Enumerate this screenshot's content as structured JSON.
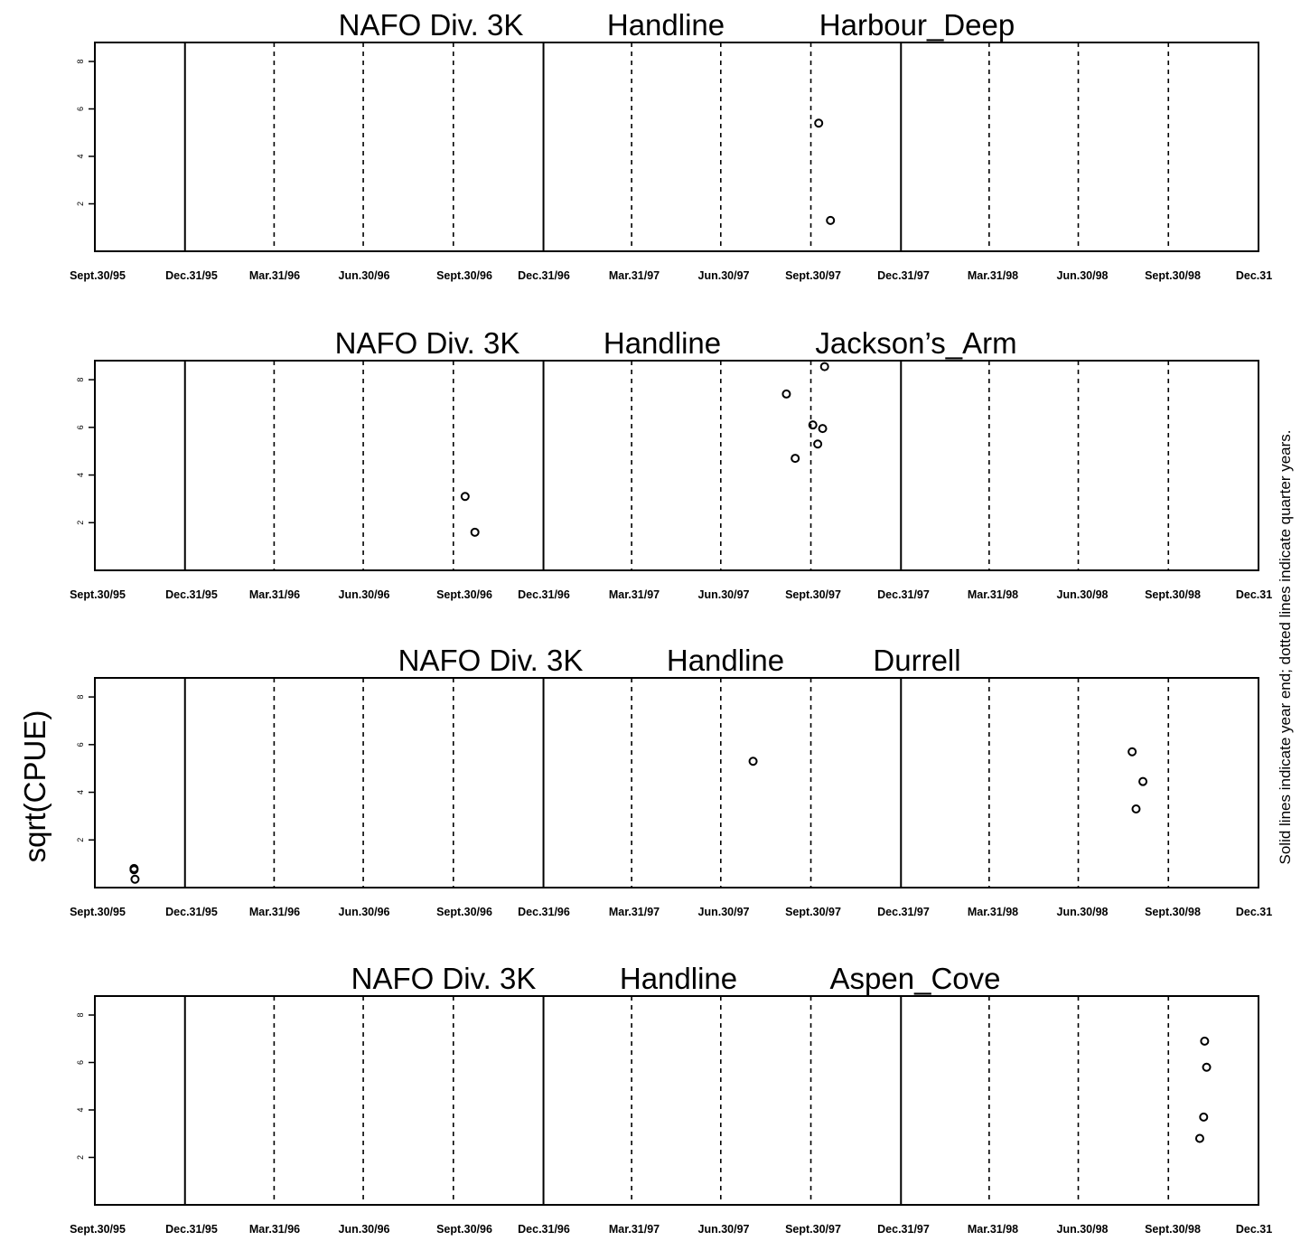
{
  "figure": {
    "ylabel": "sqrt(CPUE)",
    "side_note": "Solid lines indicate year end; dotted lines indicate quarter years."
  },
  "chart_data": [
    {
      "type": "scatter",
      "title_parts": [
        "NAFO Div. 3K",
        "Handline",
        "Harbour_Deep"
      ],
      "x_tick_labels": [
        "Sept.30/95",
        "Dec.31/95",
        "Mar.31/96",
        "Jun.30/96",
        "Sept.30/96",
        "Dec.31/96",
        "Mar.31/97",
        "Jun.30/97",
        "Sept.30/97",
        "Dec.31/97",
        "Mar.31/98",
        "Jun.30/98",
        "Sept.30/98",
        "Dec.31"
      ],
      "x_range": [
        "1995-09-30",
        "1998-12-31"
      ],
      "y_ticks": [
        2,
        4,
        6,
        8
      ],
      "ylim": [
        0,
        8.8
      ],
      "year_end_lines": [
        "1995-12-31",
        "1996-12-31",
        "1997-12-31"
      ],
      "quarter_lines": [
        "1996-03-31",
        "1996-06-30",
        "1996-09-30",
        "1997-03-31",
        "1997-06-30",
        "1997-09-30",
        "1998-03-31",
        "1998-06-30",
        "1998-09-30"
      ],
      "points": [
        {
          "x": "1997-10-08",
          "y": 5.4
        },
        {
          "x": "1997-10-20",
          "y": 1.3
        }
      ]
    },
    {
      "type": "scatter",
      "title_parts": [
        "NAFO Div. 3K",
        "Handline",
        "Jackson’s_Arm"
      ],
      "x_tick_labels": [
        "Sept.30/95",
        "Dec.31/95",
        "Mar.31/96",
        "Jun.30/96",
        "Sept.30/96",
        "Dec.31/96",
        "Mar.31/97",
        "Jun.30/97",
        "Sept.30/97",
        "Dec.31/97",
        "Mar.31/98",
        "Jun.30/98",
        "Sept.30/98",
        "Dec.31"
      ],
      "x_range": [
        "1995-09-30",
        "1998-12-31"
      ],
      "y_ticks": [
        2,
        4,
        6,
        8
      ],
      "ylim": [
        0,
        8.8
      ],
      "year_end_lines": [
        "1995-12-31",
        "1996-12-31",
        "1997-12-31"
      ],
      "quarter_lines": [
        "1996-03-31",
        "1996-06-30",
        "1996-09-30",
        "1997-03-31",
        "1997-06-30",
        "1997-09-30",
        "1998-03-31",
        "1998-06-30",
        "1998-09-30"
      ],
      "points": [
        {
          "x": "1996-10-12",
          "y": 3.1
        },
        {
          "x": "1996-10-22",
          "y": 1.6
        },
        {
          "x": "1997-09-05",
          "y": 7.4
        },
        {
          "x": "1997-09-14",
          "y": 4.7
        },
        {
          "x": "1997-10-02",
          "y": 6.1
        },
        {
          "x": "1997-10-07",
          "y": 5.3
        },
        {
          "x": "1997-10-12",
          "y": 5.95
        },
        {
          "x": "1997-10-14",
          "y": 8.55
        }
      ]
    },
    {
      "type": "scatter",
      "title_parts": [
        "NAFO Div. 3K",
        "Handline",
        "Durrell"
      ],
      "x_tick_labels": [
        "Sept.30/95",
        "Dec.31/95",
        "Mar.31/96",
        "Jun.30/96",
        "Sept.30/96",
        "Dec.31/96",
        "Mar.31/97",
        "Jun.30/97",
        "Sept.30/97",
        "Dec.31/97",
        "Mar.31/98",
        "Jun.30/98",
        "Sept.30/98",
        "Dec.31"
      ],
      "x_range": [
        "1995-09-30",
        "1998-12-31"
      ],
      "y_ticks": [
        2,
        4,
        6,
        8
      ],
      "ylim": [
        0,
        8.8
      ],
      "year_end_lines": [
        "1995-12-31",
        "1996-12-31",
        "1997-12-31"
      ],
      "quarter_lines": [
        "1996-03-31",
        "1996-06-30",
        "1996-09-30",
        "1997-03-31",
        "1997-06-30",
        "1997-09-30",
        "1998-03-31",
        "1998-06-30",
        "1998-09-30"
      ],
      "points": [
        {
          "x": "1995-11-09",
          "y": 0.75
        },
        {
          "x": "1995-11-09",
          "y": 0.8
        },
        {
          "x": "1995-11-10",
          "y": 0.35
        },
        {
          "x": "1997-08-02",
          "y": 5.3
        },
        {
          "x": "1998-08-24",
          "y": 5.7
        },
        {
          "x": "1998-08-28",
          "y": 3.3
        },
        {
          "x": "1998-09-04",
          "y": 4.45
        }
      ]
    },
    {
      "type": "scatter",
      "title_parts": [
        "NAFO Div. 3K",
        "Handline",
        "Aspen_Cove"
      ],
      "x_tick_labels": [
        "Sept.30/95",
        "Dec.31/95",
        "Mar.31/96",
        "Jun.30/96",
        "Sept.30/96",
        "Dec.31/96",
        "Mar.31/97",
        "Jun.30/97",
        "Sept.30/97",
        "Dec.31/97",
        "Mar.31/98",
        "Jun.30/98",
        "Sept.30/98",
        "Dec.31"
      ],
      "x_range": [
        "1995-09-30",
        "1998-12-31"
      ],
      "y_ticks": [
        2,
        4,
        6,
        8
      ],
      "ylim": [
        0,
        8.8
      ],
      "year_end_lines": [
        "1995-12-31",
        "1996-12-31",
        "1997-12-31"
      ],
      "quarter_lines": [
        "1996-03-31",
        "1996-06-30",
        "1996-09-30",
        "1997-03-31",
        "1997-06-30",
        "1997-09-30",
        "1998-03-31",
        "1998-06-30",
        "1998-09-30"
      ],
      "points": [
        {
          "x": "1998-11-01",
          "y": 2.8
        },
        {
          "x": "1998-11-05",
          "y": 3.7
        },
        {
          "x": "1998-11-06",
          "y": 6.9
        },
        {
          "x": "1998-11-08",
          "y": 5.8
        }
      ]
    }
  ]
}
